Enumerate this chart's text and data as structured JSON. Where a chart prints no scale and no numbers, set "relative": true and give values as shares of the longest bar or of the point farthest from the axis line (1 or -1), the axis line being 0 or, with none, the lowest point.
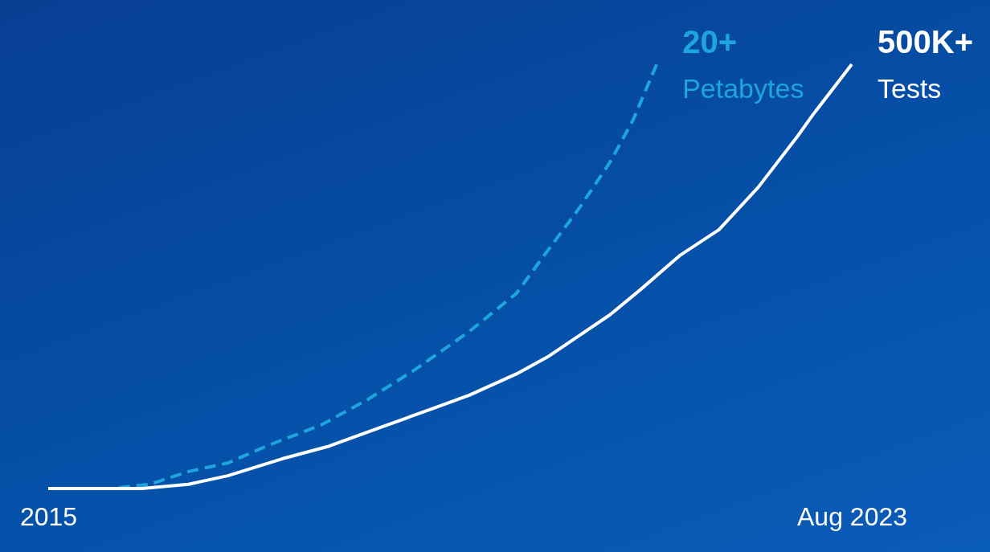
{
  "chart_data": {
    "type": "line",
    "relative": true,
    "xlim": [
      "2015-01",
      "2023-08"
    ],
    "xticks": [
      {
        "value": "2015-01",
        "label": "2015"
      },
      {
        "value": "2023-08",
        "label": "Aug 2023"
      }
    ],
    "series": [
      {
        "name": "Petabytes",
        "color": "#1ea5dc",
        "line_style": "dashed",
        "x": [
          "2015-01",
          "2015-09",
          "2016-02",
          "2016-07",
          "2016-12",
          "2017-05",
          "2017-12",
          "2018-06",
          "2018-12",
          "2019-07",
          "2020-01",
          "2020-05",
          "2020-09",
          "2021-01",
          "2021-04",
          "2021-07"
        ],
        "values": [
          0,
          0,
          0.01,
          0.04,
          0.06,
          0.1,
          0.15,
          0.21,
          0.28,
          0.37,
          0.46,
          0.56,
          0.66,
          0.77,
          0.87,
          1
        ]
      },
      {
        "name": "Tests",
        "color": "#ffffff",
        "line_style": "solid",
        "x": [
          "2015-01",
          "2016-01",
          "2016-07",
          "2016-12",
          "2017-07",
          "2018-01",
          "2018-07",
          "2019-01",
          "2019-07",
          "2020-01",
          "2020-05",
          "2020-09",
          "2021-01",
          "2021-05",
          "2021-10",
          "2022-03",
          "2022-08",
          "2023-01",
          "2023-03",
          "2023-08"
        ],
        "values": [
          0,
          0,
          0.01,
          0.03,
          0.07,
          0.1,
          0.14,
          0.18,
          0.22,
          0.27,
          0.31,
          0.36,
          0.41,
          0.47,
          0.55,
          0.61,
          0.71,
          0.83,
          0.88,
          1
        ]
      }
    ],
    "annotations": [
      {
        "text": "20+",
        "x": "2021-07",
        "y": 1
      },
      {
        "text": "500K+",
        "x": "2023-08",
        "y": 1
      }
    ],
    "grid": false,
    "legend": false,
    "marker": "none"
  }
}
